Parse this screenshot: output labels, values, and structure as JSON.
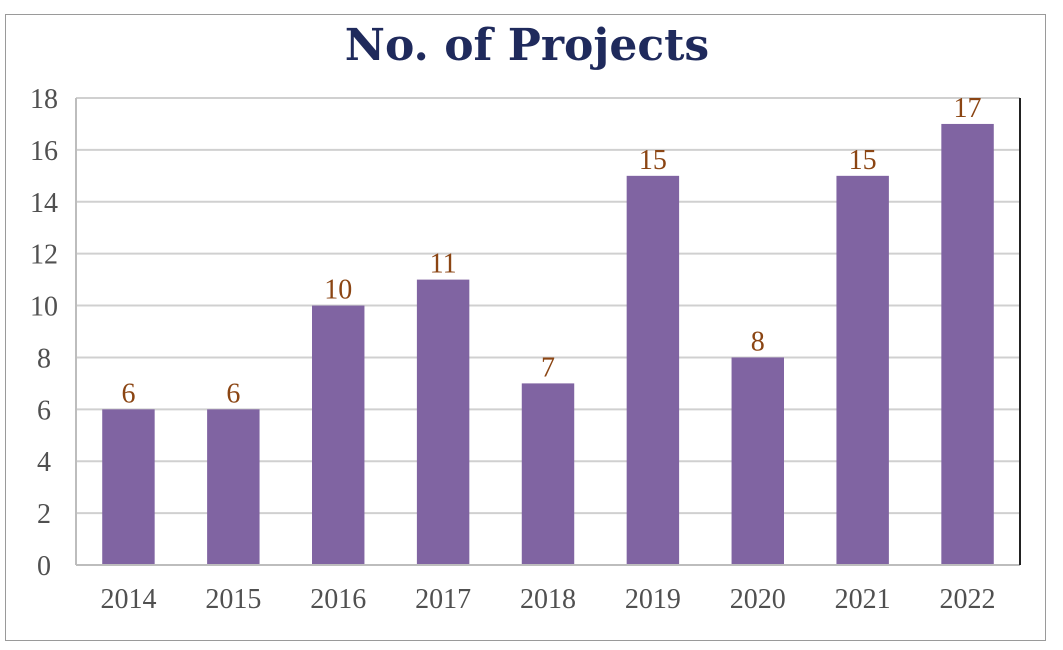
{
  "chart_data": {
    "type": "bar",
    "title": "No. of Projects",
    "xlabel": "",
    "ylabel": "",
    "categories": [
      "2014",
      "2015",
      "2016",
      "2017",
      "2018",
      "2019",
      "2020",
      "2021",
      "2022"
    ],
    "values": [
      6,
      6,
      10,
      11,
      7,
      15,
      8,
      15,
      17
    ],
    "data_labels": [
      "6",
      "6",
      "10",
      "11",
      "7",
      "15",
      "8",
      "15",
      "17"
    ],
    "ylim": [
      0,
      18
    ],
    "yticks": [
      "0",
      "2",
      "4",
      "6",
      "8",
      "10",
      "12",
      "14",
      "16",
      "18"
    ],
    "grid": true,
    "legend": "none",
    "colors": {
      "bar": "#8064a2",
      "title": "#1f2a5c",
      "data_label": "#8b4513",
      "tick_label": "#505050",
      "gridline": "#d0d0d0"
    }
  }
}
